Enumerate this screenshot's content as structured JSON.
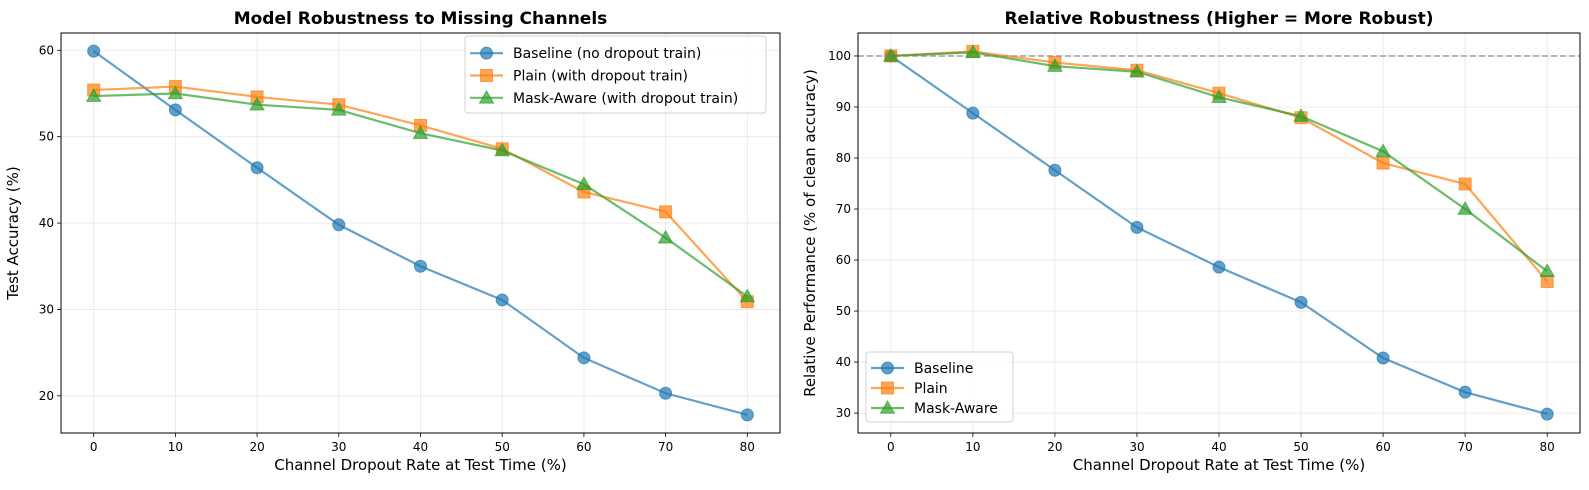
{
  "chart_data": [
    {
      "type": "line",
      "title": "Model Robustness to Missing Channels",
      "xlabel": "Channel Dropout Rate at Test Time (%)",
      "ylabel": "Test Accuracy (%)",
      "x": [
        0,
        10,
        20,
        30,
        40,
        50,
        60,
        70,
        80
      ],
      "xlim": [
        -4,
        84
      ],
      "ylim": [
        15.7,
        62.0
      ],
      "xticks": [
        0,
        10,
        20,
        30,
        40,
        50,
        60,
        70,
        80
      ],
      "yticks": [
        20,
        30,
        40,
        50,
        60
      ],
      "grid": true,
      "legend_position": "top-right",
      "series": [
        {
          "name": "Baseline (no dropout train)",
          "color": "#1f77b4",
          "marker": "circle",
          "values": [
            59.9,
            53.1,
            46.4,
            39.8,
            35.0,
            31.1,
            24.4,
            20.3,
            17.8
          ]
        },
        {
          "name": "Plain (with dropout train)",
          "color": "#ff7f0e",
          "marker": "square",
          "values": [
            55.4,
            55.8,
            54.6,
            53.7,
            51.3,
            48.6,
            43.6,
            41.3,
            30.9
          ]
        },
        {
          "name": "Mask-Aware (with dropout train)",
          "color": "#2ca02c",
          "marker": "triangle",
          "values": [
            54.7,
            55.0,
            53.7,
            53.1,
            50.4,
            48.4,
            44.5,
            38.3,
            31.5
          ]
        }
      ]
    },
    {
      "type": "line",
      "title": "Relative Robustness (Higher = More Robust)",
      "xlabel": "Channel Dropout Rate at Test Time (%)",
      "ylabel": "Relative Performance (% of clean accuracy)",
      "x": [
        0,
        10,
        20,
        30,
        40,
        50,
        60,
        70,
        80
      ],
      "xlim": [
        -4,
        84
      ],
      "ylim": [
        26.1,
        104.5
      ],
      "xticks": [
        0,
        10,
        20,
        30,
        40,
        50,
        60,
        70,
        80
      ],
      "yticks": [
        30,
        40,
        50,
        60,
        70,
        80,
        90,
        100
      ],
      "grid": true,
      "reference_line": {
        "y": 100,
        "style": "dashed",
        "color": "#a0a0a0"
      },
      "legend_position": "bottom-left",
      "series": [
        {
          "name": "Baseline",
          "color": "#1f77b4",
          "marker": "circle",
          "values": [
            100.0,
            88.8,
            77.6,
            66.4,
            58.6,
            51.7,
            40.8,
            34.1,
            29.8
          ]
        },
        {
          "name": "Plain",
          "color": "#ff7f0e",
          "marker": "square",
          "values": [
            100.0,
            100.9,
            98.7,
            97.2,
            92.7,
            87.9,
            79.0,
            74.9,
            55.8
          ]
        },
        {
          "name": "Mask-Aware",
          "color": "#2ca02c",
          "marker": "triangle",
          "values": [
            100.0,
            100.7,
            98.0,
            96.9,
            91.9,
            88.2,
            81.3,
            70.0,
            57.8
          ]
        }
      ]
    }
  ]
}
